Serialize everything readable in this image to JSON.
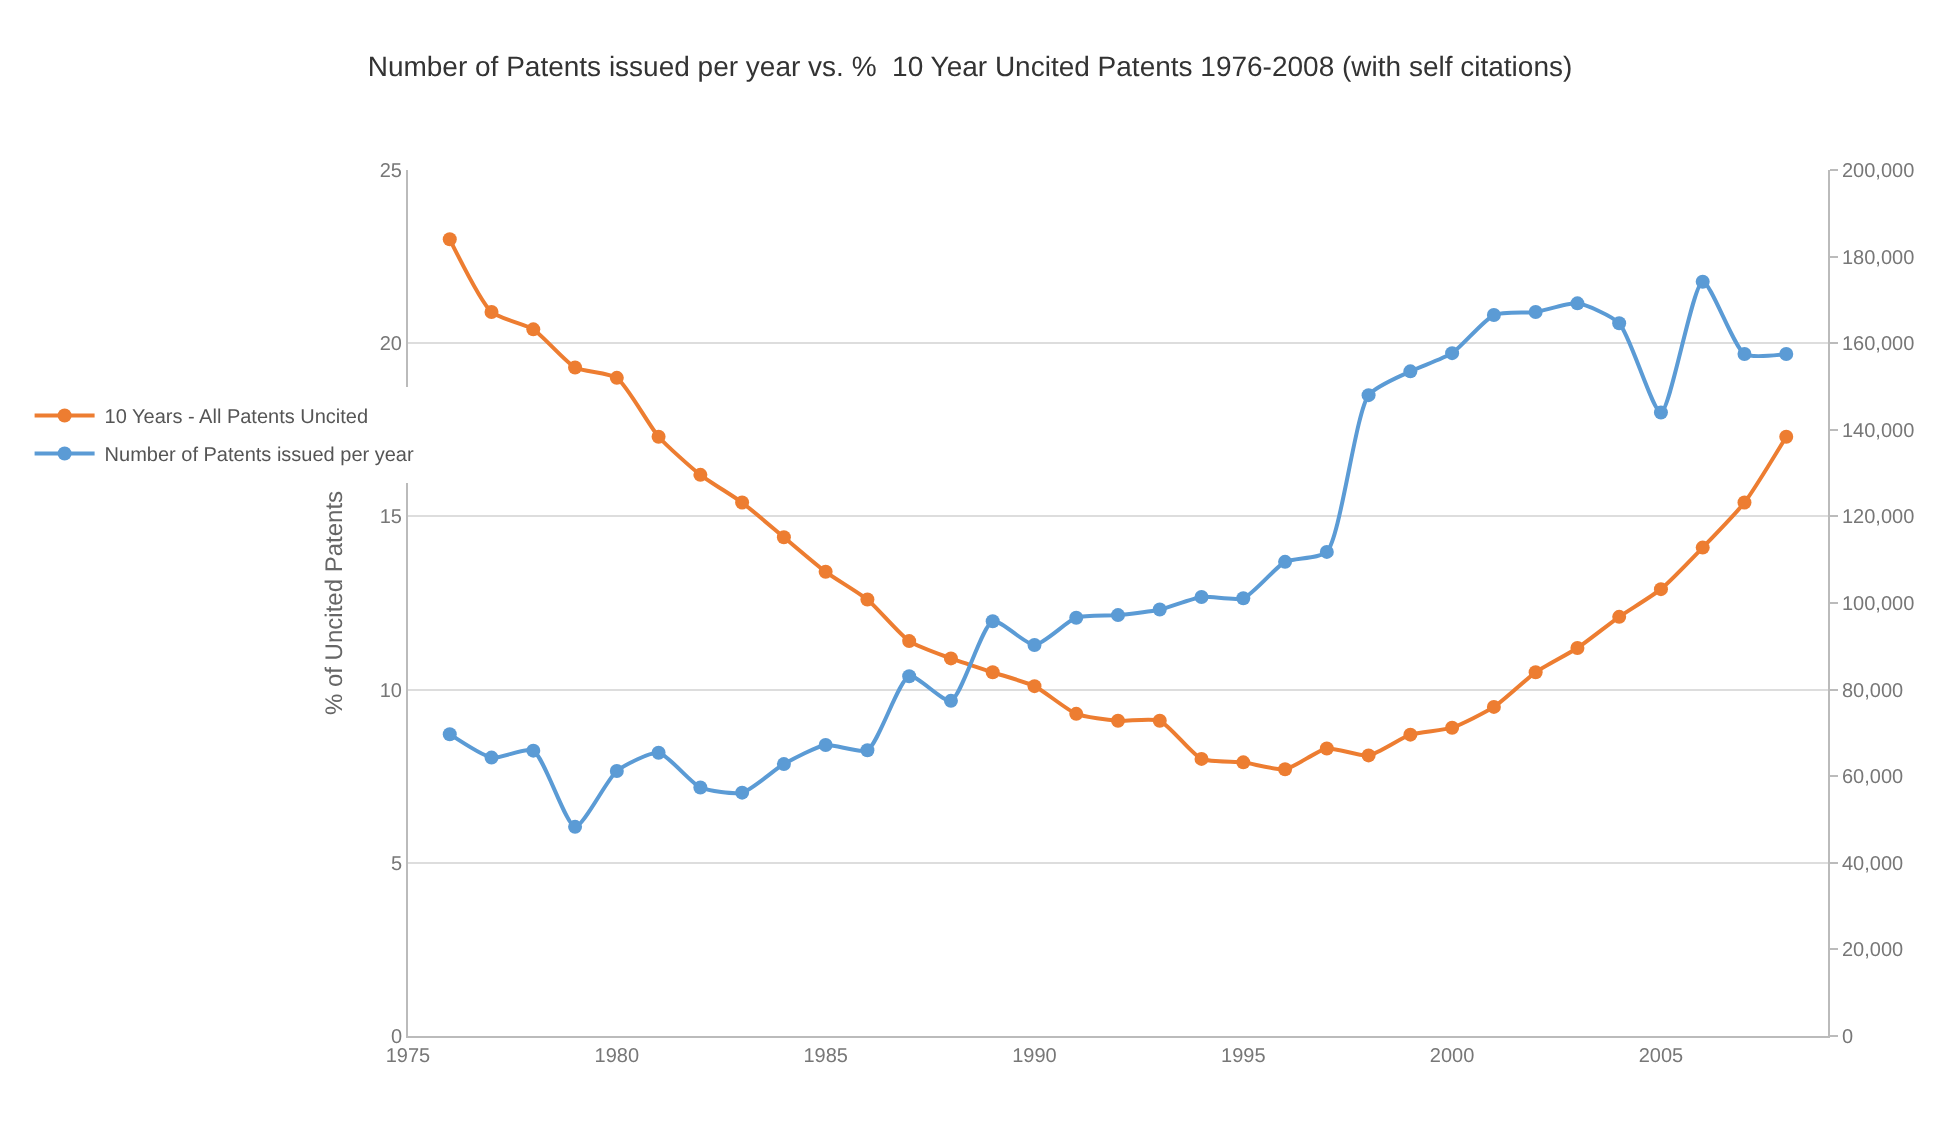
{
  "chart_data": {
    "type": "line",
    "title": "Number of Patents issued per year vs. %  10 Year Uncited Patents 1976-2008 (with self citations)",
    "ylabel": "% of Uncited Patents",
    "x": [
      1976,
      1977,
      1978,
      1979,
      1980,
      1981,
      1982,
      1983,
      1984,
      1985,
      1986,
      1987,
      1988,
      1989,
      1990,
      1991,
      1992,
      1993,
      1994,
      1995,
      1996,
      1997,
      1998,
      1999,
      2000,
      2001,
      2002,
      2003,
      2004,
      2005,
      2006,
      2007,
      2008
    ],
    "series": [
      {
        "name": "10 Years - All Patents Uncited",
        "color": "#ed7d31",
        "values": [
          23.0,
          20.9,
          20.4,
          19.3,
          19.0,
          17.3,
          16.2,
          15.4,
          14.4,
          13.4,
          12.6,
          11.4,
          10.9,
          10.5,
          10.1,
          9.3,
          9.1,
          9.1,
          8.0,
          7.9,
          7.7,
          8.3,
          8.1,
          8.7,
          8.9,
          9.5,
          10.5,
          11.2,
          12.1,
          12.9,
          14.1,
          15.4,
          17.3
        ]
      },
      {
        "name": "Number of Patents issued per year",
        "color": "#5b9bd5",
        "axis": "y2",
        "values": [
          69700,
          64300,
          65900,
          48300,
          61200,
          65400,
          57400,
          56200,
          62800,
          67200,
          66000,
          83100,
          77400,
          95800,
          90300,
          96600,
          97200,
          98500,
          101400,
          101100,
          109500,
          111800,
          148000,
          153500,
          157700,
          166500,
          167200,
          169200,
          164600,
          144000,
          174200,
          157500,
          157500
        ]
      }
    ],
    "xlim": [
      1975,
      2009
    ],
    "xticks": [
      1975,
      1980,
      1985,
      1990,
      1995,
      2000,
      2005
    ],
    "ylim": [
      0,
      25
    ],
    "yticks": [
      0,
      5,
      10,
      15,
      20,
      25
    ],
    "y2lim": [
      0,
      200000
    ],
    "y2ticks": [
      {
        "value": 0,
        "label": "0"
      },
      {
        "value": 20000,
        "label": "20,000"
      },
      {
        "value": 40000,
        "label": "40,000"
      },
      {
        "value": 60000,
        "label": "60,000"
      },
      {
        "value": 80000,
        "label": "80,000"
      },
      {
        "value": 100000,
        "label": "100,000"
      },
      {
        "value": 120000,
        "label": "120,000"
      },
      {
        "value": 140000,
        "label": "140,000"
      },
      {
        "value": 160000,
        "label": "160,000"
      },
      {
        "value": 180000,
        "label": "180,000"
      },
      {
        "value": 200000,
        "label": "200,000"
      }
    ],
    "grid": "y",
    "legend": "left",
    "marker": "circle",
    "line_style": "solid"
  }
}
